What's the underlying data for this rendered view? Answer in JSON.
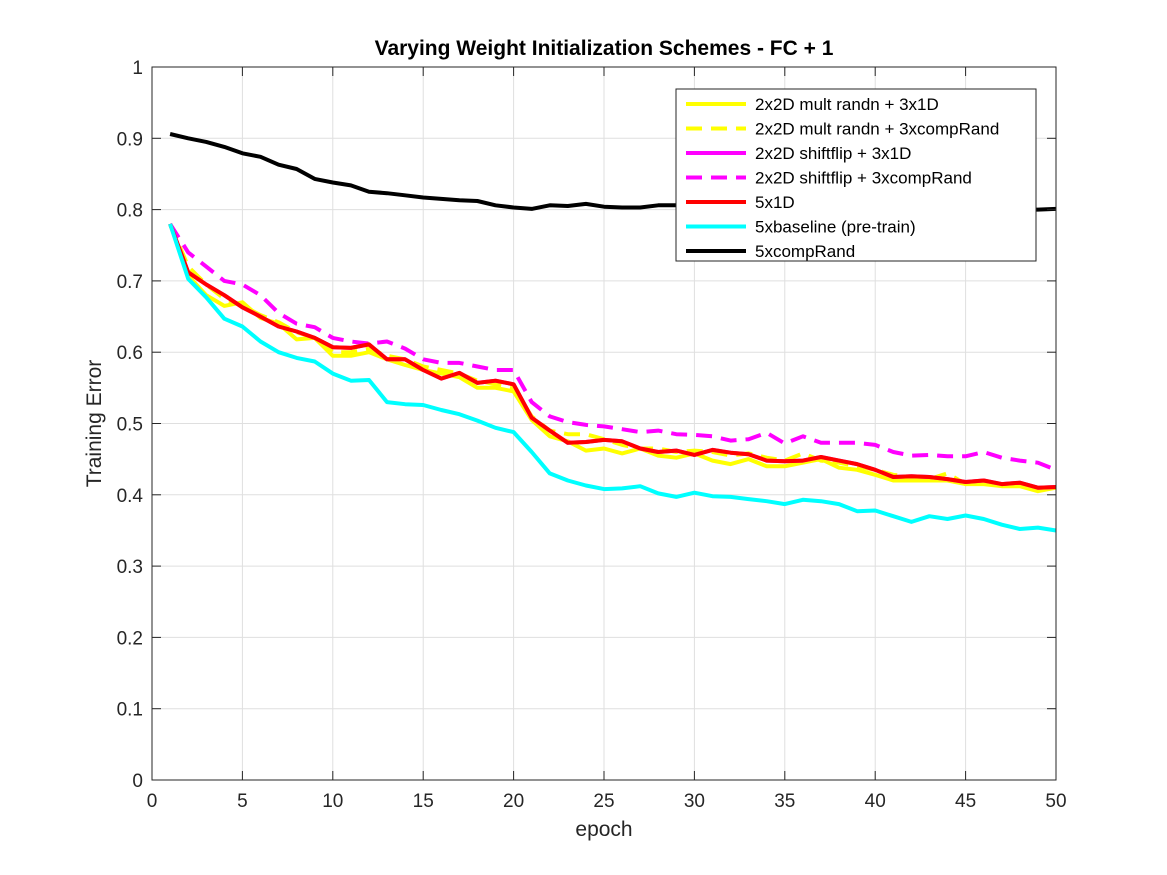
{
  "chart_data": {
    "type": "line",
    "title": "Varying Weight Initialization Schemes - FC + 1",
    "xlabel": "epoch",
    "ylabel": "Training Error",
    "xlim": [
      0,
      50
    ],
    "ylim": [
      0,
      1
    ],
    "xticks": [
      "0",
      "5",
      "10",
      "15",
      "20",
      "25",
      "30",
      "35",
      "40",
      "45",
      "50"
    ],
    "yticks": [
      "0",
      "0.1",
      "0.2",
      "0.3",
      "0.4",
      "0.5",
      "0.6",
      "0.7",
      "0.8",
      "0.9",
      "1"
    ],
    "grid": true,
    "legend_position": "top-right",
    "x": [
      1,
      2,
      3,
      4,
      5,
      6,
      7,
      8,
      9,
      10,
      11,
      12,
      13,
      14,
      15,
      16,
      17,
      18,
      19,
      20,
      21,
      22,
      23,
      24,
      25,
      26,
      27,
      28,
      29,
      30,
      31,
      32,
      33,
      34,
      35,
      36,
      37,
      38,
      39,
      40,
      41,
      42,
      43,
      44,
      45,
      46,
      47,
      48,
      49,
      50
    ],
    "series": [
      {
        "name": "2x2D mult randn + 3x1D",
        "color": "#ffff00",
        "dash": "solid",
        "values": [
          0.78,
          0.707,
          0.68,
          0.665,
          0.67,
          0.648,
          0.64,
          0.618,
          0.62,
          0.595,
          0.595,
          0.6,
          0.59,
          0.582,
          0.575,
          0.57,
          0.565,
          0.55,
          0.55,
          0.545,
          0.505,
          0.482,
          0.475,
          0.462,
          0.465,
          0.458,
          0.465,
          0.455,
          0.452,
          0.458,
          0.448,
          0.443,
          0.45,
          0.44,
          0.44,
          0.445,
          0.45,
          0.438,
          0.435,
          0.428,
          0.42,
          0.42,
          0.42,
          0.42,
          0.415,
          0.415,
          0.412,
          0.412,
          0.405,
          0.41
        ]
      },
      {
        "name": "2x2D mult randn + 3xcompRand",
        "color": "#ffff00",
        "dash": "dashed",
        "values": [
          0.78,
          0.72,
          0.695,
          0.675,
          0.665,
          0.652,
          0.642,
          0.628,
          0.62,
          0.6,
          0.6,
          0.605,
          0.595,
          0.59,
          0.58,
          0.575,
          0.57,
          0.56,
          0.555,
          0.55,
          0.51,
          0.49,
          0.485,
          0.485,
          0.478,
          0.47,
          0.465,
          0.465,
          0.46,
          0.462,
          0.46,
          0.455,
          0.458,
          0.452,
          0.448,
          0.458,
          0.448,
          0.445,
          0.44,
          0.435,
          0.428,
          0.425,
          0.422,
          0.43,
          0.415,
          0.418,
          0.415,
          0.412,
          0.41,
          0.41
        ]
      },
      {
        "name": "2x2D shiftflip + 3x1D",
        "color": "#ff00ff",
        "dash": "solid",
        "values": [
          0.78,
          0.712,
          0.695,
          0.68,
          0.663,
          0.65,
          0.636,
          0.629,
          0.62,
          0.607,
          0.606,
          0.611,
          0.59,
          0.59,
          0.575,
          0.563,
          0.571,
          0.557,
          0.56,
          0.555,
          0.508,
          0.49,
          0.473,
          0.474,
          0.477,
          0.475,
          0.465,
          0.46,
          0.462,
          0.456,
          0.463,
          0.459,
          0.457,
          0.448,
          0.447,
          0.448,
          0.453,
          0.448,
          0.443,
          0.435,
          0.425,
          0.426,
          0.425,
          0.422,
          0.418,
          0.42,
          0.415,
          0.417,
          0.41,
          0.411
        ]
      },
      {
        "name": "2x2D shiftflip + 3xcompRand",
        "color": "#ff00ff",
        "dash": "dashed",
        "values": [
          0.78,
          0.74,
          0.72,
          0.7,
          0.695,
          0.68,
          0.655,
          0.64,
          0.635,
          0.62,
          0.615,
          0.612,
          0.615,
          0.605,
          0.59,
          0.585,
          0.585,
          0.58,
          0.575,
          0.575,
          0.53,
          0.51,
          0.502,
          0.498,
          0.496,
          0.492,
          0.488,
          0.49,
          0.485,
          0.484,
          0.482,
          0.476,
          0.478,
          0.487,
          0.472,
          0.482,
          0.473,
          0.473,
          0.473,
          0.47,
          0.46,
          0.455,
          0.456,
          0.454,
          0.454,
          0.46,
          0.452,
          0.448,
          0.445,
          0.435
        ]
      },
      {
        "name": "5x1D",
        "color": "#ff0000",
        "dash": "solid",
        "values": [
          0.78,
          0.712,
          0.695,
          0.68,
          0.663,
          0.65,
          0.636,
          0.629,
          0.62,
          0.607,
          0.606,
          0.611,
          0.59,
          0.59,
          0.575,
          0.563,
          0.571,
          0.557,
          0.56,
          0.555,
          0.508,
          0.49,
          0.473,
          0.474,
          0.477,
          0.475,
          0.465,
          0.46,
          0.462,
          0.456,
          0.463,
          0.459,
          0.457,
          0.448,
          0.447,
          0.448,
          0.453,
          0.448,
          0.443,
          0.435,
          0.425,
          0.426,
          0.425,
          0.422,
          0.418,
          0.42,
          0.415,
          0.417,
          0.41,
          0.411
        ]
      },
      {
        "name": "5xbaseline (pre-train)",
        "color": "#00ffff",
        "dash": "solid",
        "values": [
          0.78,
          0.703,
          0.677,
          0.647,
          0.636,
          0.615,
          0.6,
          0.592,
          0.587,
          0.57,
          0.56,
          0.561,
          0.53,
          0.527,
          0.526,
          0.519,
          0.513,
          0.504,
          0.494,
          0.488,
          0.46,
          0.43,
          0.42,
          0.413,
          0.408,
          0.409,
          0.412,
          0.402,
          0.397,
          0.403,
          0.398,
          0.397,
          0.394,
          0.391,
          0.387,
          0.393,
          0.391,
          0.387,
          0.377,
          0.378,
          0.37,
          0.362,
          0.37,
          0.366,
          0.371,
          0.366,
          0.358,
          0.352,
          0.354,
          0.35
        ]
      },
      {
        "name": "5xcompRand",
        "color": "#000000",
        "dash": "solid",
        "values": [
          0.906,
          0.9,
          0.895,
          0.888,
          0.879,
          0.874,
          0.863,
          0.857,
          0.843,
          0.838,
          0.834,
          0.825,
          0.823,
          0.82,
          0.817,
          0.815,
          0.813,
          0.812,
          0.806,
          0.803,
          0.801,
          0.806,
          0.805,
          0.808,
          0.804,
          0.803,
          0.803,
          0.806,
          0.806,
          0.805,
          0.806,
          0.804,
          0.806,
          0.805,
          0.804,
          0.803,
          0.803,
          0.802,
          0.804,
          0.803,
          0.803,
          0.802,
          0.803,
          0.803,
          0.802,
          0.801,
          0.8,
          0.8,
          0.8,
          0.801
        ]
      }
    ]
  }
}
